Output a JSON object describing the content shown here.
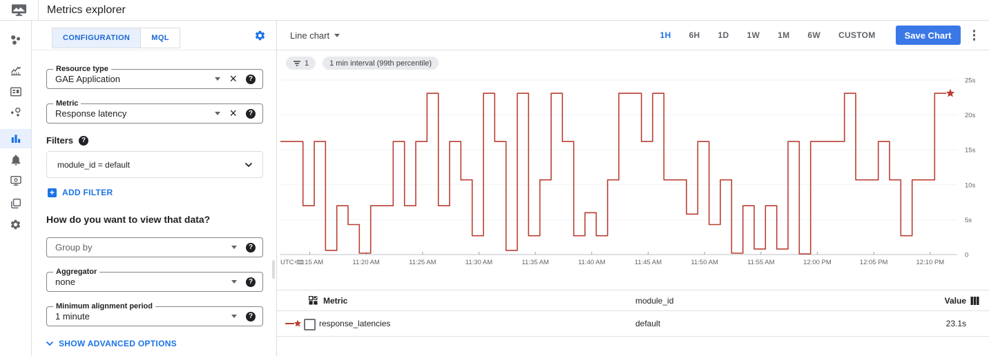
{
  "header": {
    "title": "Metrics explorer"
  },
  "sidebar": {
    "items": [
      {
        "name": "overview"
      },
      {
        "name": "metrics"
      },
      {
        "name": "dashboards"
      },
      {
        "name": "services"
      },
      {
        "name": "metrics-explorer",
        "active": true
      },
      {
        "name": "alerting"
      },
      {
        "name": "uptime-checks"
      },
      {
        "name": "groups"
      },
      {
        "name": "settings"
      }
    ]
  },
  "config_panel": {
    "tabs": [
      {
        "label": "CONFIGURATION",
        "active": true
      },
      {
        "label": "MQL",
        "active": false
      }
    ],
    "resource_type": {
      "label": "Resource type",
      "value": "GAE Application"
    },
    "metric": {
      "label": "Metric",
      "value": "Response latency"
    },
    "filters_label": "Filters",
    "filter_value": "module_id = default",
    "add_filter_label": "ADD FILTER",
    "view_question": "How do you want to view that data?",
    "group_by": {
      "placeholder": "Group by"
    },
    "aggregator": {
      "label": "Aggregator",
      "value": "none"
    },
    "min_alignment": {
      "label": "Minimum alignment period",
      "value": "1 minute"
    },
    "advanced_label": "SHOW ADVANCED OPTIONS"
  },
  "chart_toolbar": {
    "chart_type": "Line chart",
    "time_ranges": [
      "1H",
      "6H",
      "1D",
      "1W",
      "1M",
      "6W",
      "CUSTOM"
    ],
    "active_range": "1H",
    "save_button": "Save Chart"
  },
  "chips": {
    "filter_count": "1",
    "interval": "1 min interval (99th percentile)"
  },
  "chart_data": {
    "type": "line",
    "style": "step",
    "line_color": "#b93e32",
    "x_axis_prefix": "UTC+11",
    "x_range": [
      "11:12 AM",
      "12:12 PM"
    ],
    "x_tick_labels": [
      "11:15 AM",
      "11:20 AM",
      "11:25 AM",
      "11:30 AM",
      "11:35 AM",
      "11:40 AM",
      "11:45 AM",
      "11:50 AM",
      "11:55 AM",
      "12:00 PM",
      "12:05 PM",
      "12:10 PM"
    ],
    "x_tick_start_offset_min": 2.6,
    "x_tick_step_min": 5,
    "x_span_min": 60,
    "ylim": [
      0,
      25
    ],
    "y_ticks": [
      {
        "v": 25,
        "label": "25s"
      },
      {
        "v": 20,
        "label": "20s"
      },
      {
        "v": 15,
        "label": "15s"
      },
      {
        "v": 10,
        "label": "10s"
      },
      {
        "v": 5,
        "label": "5s"
      },
      {
        "v": 0,
        "label": "0"
      }
    ],
    "unit": "seconds",
    "interval": "1 min",
    "aggregation": "99th percentile",
    "series_name": "response_latencies",
    "current_value": "23.1s",
    "values": [
      16.2,
      16.2,
      7,
      16.2,
      0.6,
      7,
      4.3,
      0.2,
      7,
      7,
      16.2,
      7,
      16.2,
      23.1,
      7,
      16.2,
      10.7,
      2.7,
      23.1,
      16.2,
      0.6,
      23.1,
      2.7,
      10.7,
      23.1,
      16.2,
      2.7,
      6,
      2.7,
      10.7,
      23.1,
      23.1,
      16.2,
      23.1,
      10.7,
      10.7,
      5.8,
      16.2,
      4.3,
      10.7,
      0.2,
      7,
      0.8,
      7,
      0.8,
      16.2,
      0.1,
      16.2,
      16.2,
      16.2,
      23.1,
      10.7,
      10.7,
      16.2,
      10.7,
      2.7,
      10.7,
      10.7,
      23.1,
      23.1,
      23.1
    ]
  },
  "table": {
    "headers": {
      "metric": "Metric",
      "module_id": "module_id",
      "value": "Value"
    },
    "rows": [
      {
        "metric": "response_latencies",
        "module_id": "default",
        "value": "23.1s"
      }
    ]
  },
  "colors": {
    "accent": "#1a73e8",
    "active_tab_bg": "#e8f0fe",
    "save_button": "#3b78e7",
    "line": "#b93e32",
    "chip_bg": "#e9eaed"
  }
}
